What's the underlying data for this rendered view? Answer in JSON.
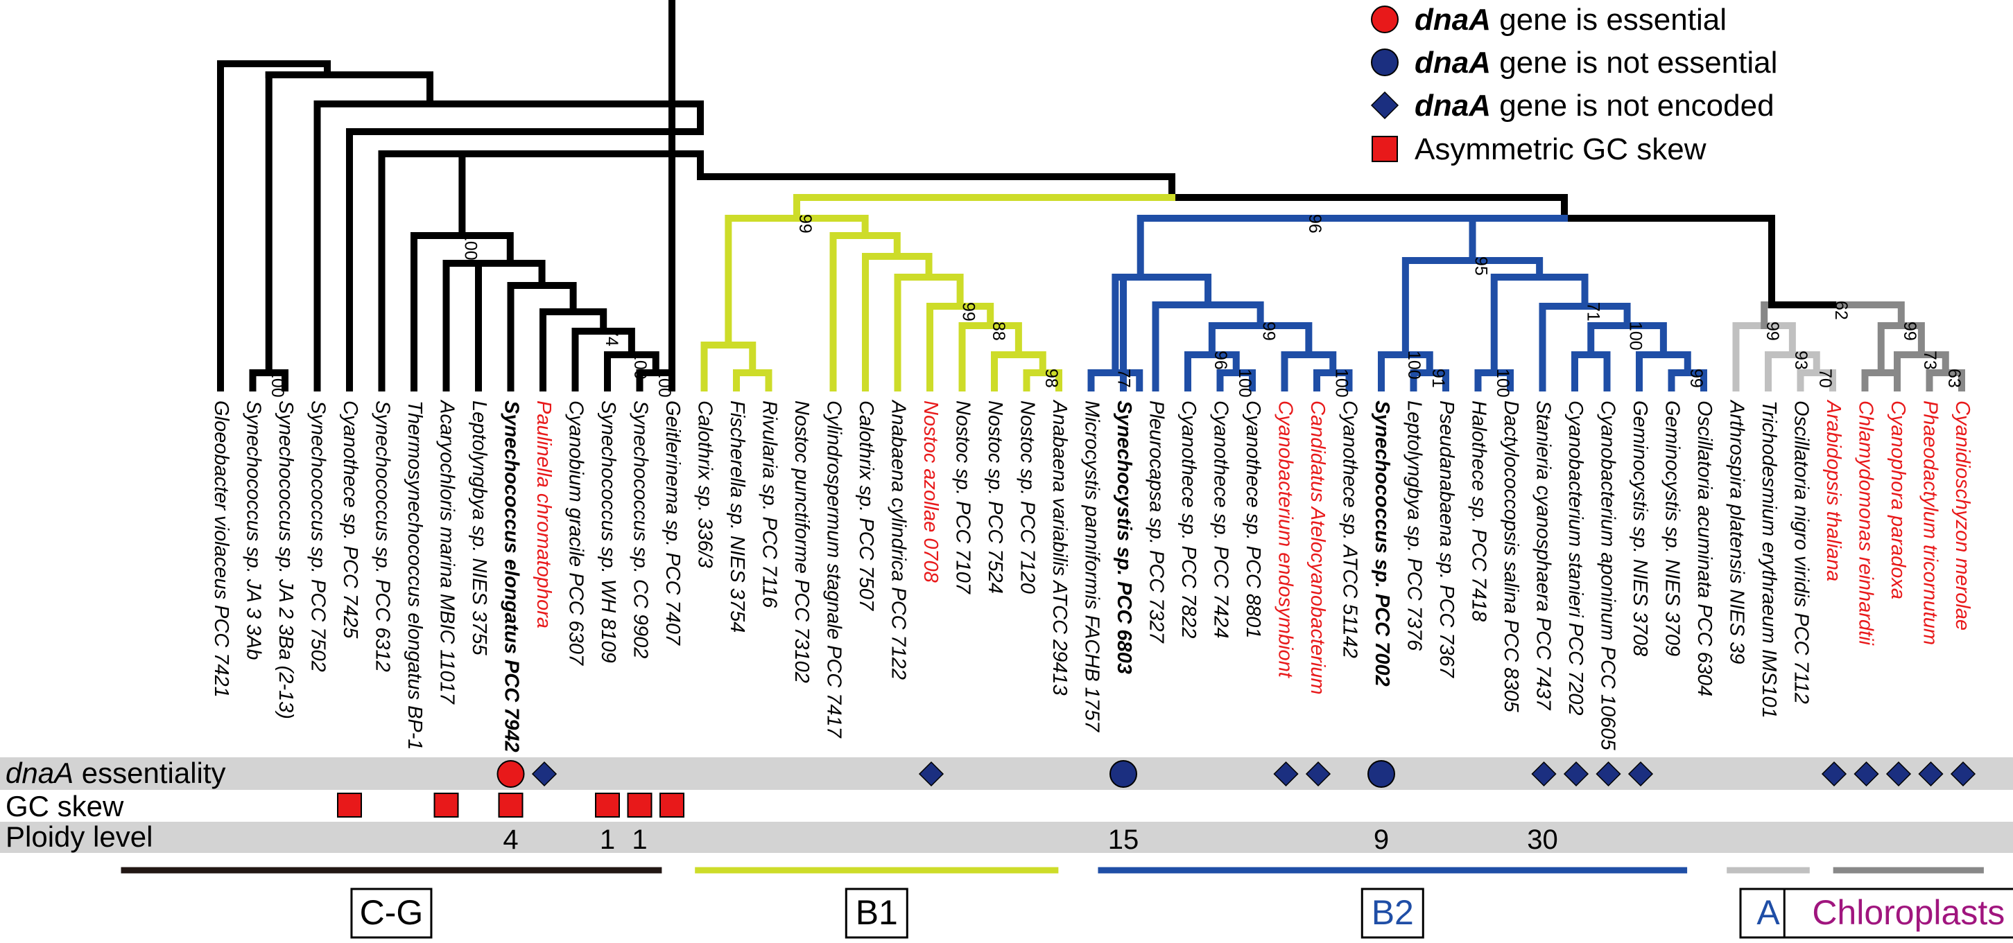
{
  "legend": [
    {
      "bold": "dnaA",
      "rest": " gene is essential",
      "marker": "red-circle"
    },
    {
      "bold": "dnaA",
      "rest": " gene is not essential",
      "marker": "blue-circle"
    },
    {
      "bold": "dnaA",
      "rest": " gene is not encoded",
      "marker": "blue-diamond"
    },
    {
      "bold": "",
      "rest": "Asymmetric GC skew",
      "marker": "red-square"
    }
  ],
  "colors": {
    "black": "#000000",
    "b1": "#cddc29",
    "b2": "#1f4ea6",
    "a_light": "#c0c0c0",
    "a_dark": "#888888",
    "red": "#e8191a",
    "navy": "#1b2f80",
    "band": "#d3d3d3",
    "clade_cg": "#221714"
  },
  "taxa": [
    {
      "name": "Gloeobacter violaceus PCC 7421",
      "color": "black",
      "bold": false
    },
    {
      "name": "Synechococcus  sp. JA 3 3Ab",
      "color": "black",
      "bold": false
    },
    {
      "name": "Synechococcus  sp. JA 2 3Ba (2-13)",
      "color": "black",
      "bold": false
    },
    {
      "name": "Synechococcus  sp. PCC 7502",
      "color": "black",
      "bold": false
    },
    {
      "name": "Cyanothece sp. PCC 7425",
      "color": "black",
      "bold": false
    },
    {
      "name": "Synechococcus  sp. PCC 6312",
      "color": "black",
      "bold": false
    },
    {
      "name": "Thermosynechococcus elongatus BP-1",
      "color": "black",
      "bold": false
    },
    {
      "name": "Acaryochloris  marina MBIC 11017",
      "color": "black",
      "bold": false
    },
    {
      "name": "Leptolyngbya  sp. NIES 3755",
      "color": "black",
      "bold": false
    },
    {
      "name": "Synechococcus elongatus PCC 7942",
      "color": "black",
      "bold": true
    },
    {
      "name": "Paulinella chromatophora",
      "color": "red",
      "bold": false
    },
    {
      "name": "Cyanobium gracile PCC 6307",
      "color": "black",
      "bold": false
    },
    {
      "name": "Synechococcus  sp. WH 8109",
      "color": "black",
      "bold": false
    },
    {
      "name": "Synechococcus  sp. CC 9902",
      "color": "black",
      "bold": false
    },
    {
      "name": "Geitlerinema  sp. PCC 7407",
      "color": "black",
      "bold": false
    },
    {
      "name": "Calothrix sp. 336/3",
      "color": "black",
      "bold": false
    },
    {
      "name": "Fischerella  sp. NIES 3754",
      "color": "black",
      "bold": false
    },
    {
      "name": "Rivularia  sp. PCC 7116",
      "color": "black",
      "bold": false
    },
    {
      "name": "Nostoc punctiforme  PCC 73102",
      "color": "black",
      "bold": false
    },
    {
      "name": "Cylindrospermum stagnale PCC 7417",
      "color": "black",
      "bold": false
    },
    {
      "name": "Calothrix sp. PCC 7507",
      "color": "black",
      "bold": false
    },
    {
      "name": "Anabaena cylindrica PCC 7122",
      "color": "black",
      "bold": false
    },
    {
      "name": "Nostoc azollae 0708",
      "color": "red",
      "bold": false
    },
    {
      "name": "Nostoc sp. PCC 7107",
      "color": "black",
      "bold": false
    },
    {
      "name": "Nostoc sp. PCC 7524",
      "color": "black",
      "bold": false
    },
    {
      "name": "Nostoc sp. PCC 7120",
      "color": "black",
      "bold": false
    },
    {
      "name": "Anabaena variabilis ATCC 29413",
      "color": "black",
      "bold": false
    },
    {
      "name": "Microcystis panniformis FACHB 1757",
      "color": "black",
      "bold": false
    },
    {
      "name": "Synechocystis sp. PCC 6803",
      "color": "black",
      "bold": true
    },
    {
      "name": "Pleurocapsa sp. PCC 7327",
      "color": "black",
      "bold": false
    },
    {
      "name": "Cyanothece sp. PCC 7822",
      "color": "black",
      "bold": false
    },
    {
      "name": "Cyanothece sp. PCC 7424",
      "color": "black",
      "bold": false
    },
    {
      "name": "Cyanothece sp. PCC 8801",
      "color": "black",
      "bold": false
    },
    {
      "name": "Cyanobacterium endosymbiont",
      "color": "red",
      "bold": false
    },
    {
      "name": "Candidatus Atelocyanobacterium",
      "color": "red",
      "bold": false
    },
    {
      "name": "Cyanothece sp. ATCC 51142",
      "color": "black",
      "bold": false
    },
    {
      "name": "Synechococcus  sp. PCC 7002",
      "color": "black",
      "bold": true
    },
    {
      "name": "Leptolyngbya sp. PCC 7376",
      "color": "black",
      "bold": false
    },
    {
      "name": "Pseudanabaena  sp. PCC 7367",
      "color": "black",
      "bold": false
    },
    {
      "name": "Halothece sp. PCC 7418",
      "color": "black",
      "bold": false
    },
    {
      "name": "Dactylococcopsis  salina PCC 8305",
      "color": "black",
      "bold": false
    },
    {
      "name": "Stanieria cyanosphaera PCC 7437",
      "color": "black",
      "bold": false
    },
    {
      "name": "Cyanobacterium  stanieri PCC 7202",
      "color": "black",
      "bold": false
    },
    {
      "name": "Cyanobacterium aponinum PCC 10605",
      "color": "black",
      "bold": false
    },
    {
      "name": "Geminocystis sp. NIES 3708",
      "color": "black",
      "bold": false
    },
    {
      "name": "Geminocystis sp. NIES 3709",
      "color": "black",
      "bold": false
    },
    {
      "name": "Oscillatoria  acuminata PCC 6304",
      "color": "black",
      "bold": false
    },
    {
      "name": "Arthrospira  platensis NIES 39",
      "color": "black",
      "bold": false
    },
    {
      "name": "Trichodesmium  erythraeum  IMS101",
      "color": "black",
      "bold": false
    },
    {
      "name": "Oscillatoria nigro viridis PCC 7112",
      "color": "black",
      "bold": false
    },
    {
      "name": "Arabidopsis  thaliana",
      "color": "red",
      "bold": false
    },
    {
      "name": "Chlamydomonas  reinhardtii",
      "color": "red",
      "bold": false
    },
    {
      "name": "Cyanophora paradoxa",
      "color": "red",
      "bold": false
    },
    {
      "name": "Phaeodactylum  tricornutum",
      "color": "red",
      "bold": false
    },
    {
      "name": "Cyanidioschyzon  merolae",
      "color": "red",
      "bold": false
    }
  ],
  "bootstrap_labels": [
    "100",
    "60",
    "71",
    "100",
    "100",
    "74",
    "100",
    "100",
    "99",
    "99",
    "88",
    "98",
    "96",
    "96",
    "95",
    "77",
    "96",
    "100",
    "99",
    "100",
    "100",
    "91",
    "100",
    "71",
    "100",
    "99",
    "62",
    "99",
    "93",
    "70",
    "100",
    "99",
    "73",
    "63"
  ],
  "rows": {
    "essentiality": {
      "label_italic": "dnaA",
      "label_rest": " essentiality"
    },
    "gc_skew": {
      "label": "GC skew"
    },
    "ploidy": {
      "label": "Ploidy level",
      "values": [
        "4",
        "1",
        "1",
        "15",
        "9",
        "30"
      ]
    }
  },
  "essentiality_markers": {
    "red_circle_taxa": [
      9
    ],
    "blue_circle_taxa": [
      28,
      36
    ],
    "diamond_taxa": [
      10,
      22,
      33,
      34,
      41,
      42,
      43,
      44,
      50,
      51,
      52,
      53,
      54
    ]
  },
  "gc_skew_taxa": [
    4,
    7,
    9,
    12,
    13,
    14
  ],
  "ploidy_taxa": [
    9,
    12,
    13,
    28,
    36,
    41
  ],
  "clades": [
    {
      "label": "C-G",
      "color": "clade_cg",
      "text_color": "black"
    },
    {
      "label": "B1",
      "color": "b1",
      "text_color": "black"
    },
    {
      "label": "B2",
      "color": "b2",
      "text_color": "b2"
    },
    {
      "label": "A",
      "color": "a_light",
      "text_color": "b2"
    },
    {
      "label": "Chloroplasts",
      "color": "a_dark",
      "text_color": "#a0157e"
    }
  ]
}
